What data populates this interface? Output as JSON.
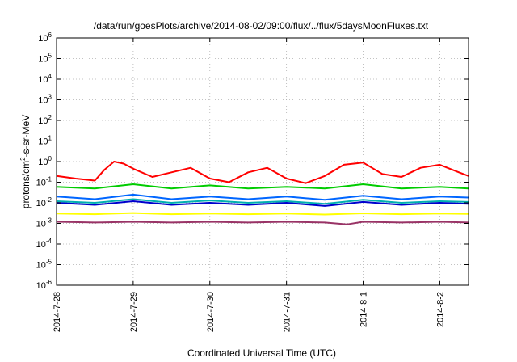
{
  "chart_data": {
    "type": "line",
    "title": "/data/run/goesPlots/archive/2014-08-02/09:00/flux/../flux/5daysMoonFluxes.txt",
    "xlabel": "Coordinated Universal Time (UTC)",
    "ylabel": {
      "pre": "protons/cm",
      "sup": "2",
      "post": "-s-sr-MeV"
    },
    "yscale": "log",
    "ylim": [
      1e-06,
      1000000.0
    ],
    "xlim": [
      "2014-07-28",
      "2014-08-02T09:00"
    ],
    "grid": true,
    "legend": "none",
    "x_ticks": [
      {
        "date": "2014-07-28",
        "label": "2014-7-28"
      },
      {
        "date": "2014-07-29",
        "label": "2014-7-29"
      },
      {
        "date": "2014-07-30",
        "label": "2014-7-30"
      },
      {
        "date": "2014-07-31",
        "label": "2014-7-31"
      },
      {
        "date": "2014-08-01",
        "label": "2014-8-1"
      },
      {
        "date": "2014-08-02",
        "label": "2014-8-2"
      }
    ],
    "y_ticks": [
      {
        "value": 1e-06,
        "base": "10",
        "exp": "-6"
      },
      {
        "value": 1e-05,
        "base": "10",
        "exp": "-5"
      },
      {
        "value": 0.0001,
        "base": "10",
        "exp": "-4"
      },
      {
        "value": 0.001,
        "base": "10",
        "exp": "-3"
      },
      {
        "value": 0.01,
        "base": "10",
        "exp": "-2"
      },
      {
        "value": 0.1,
        "base": "10",
        "exp": "-1"
      },
      {
        "value": 1.0,
        "base": "10",
        "exp": "0"
      },
      {
        "value": 10.0,
        "base": "10",
        "exp": "1"
      },
      {
        "value": 100.0,
        "base": "10",
        "exp": "2"
      },
      {
        "value": 1000.0,
        "base": "10",
        "exp": "3"
      },
      {
        "value": 10000.0,
        "base": "10",
        "exp": "4"
      },
      {
        "value": 100000.0,
        "base": "10",
        "exp": "5"
      },
      {
        "value": 1000000.0,
        "base": "10",
        "exp": "6"
      }
    ],
    "series": [
      {
        "color": "#ff0000",
        "x": [
          "2014-07-28T00:00",
          "2014-07-28T06:00",
          "2014-07-28T12:00",
          "2014-07-28T15:00",
          "2014-07-28T18:00",
          "2014-07-28T21:00",
          "2014-07-29T00:00",
          "2014-07-29T06:00",
          "2014-07-29T12:00",
          "2014-07-29T18:00",
          "2014-07-30T00:00",
          "2014-07-30T06:00",
          "2014-07-30T12:00",
          "2014-07-30T18:00",
          "2014-07-31T00:00",
          "2014-07-31T06:00",
          "2014-07-31T12:00",
          "2014-07-31T18:00",
          "2014-08-01T00:00",
          "2014-08-01T06:00",
          "2014-08-01T12:00",
          "2014-08-01T18:00",
          "2014-08-02T00:00",
          "2014-08-02T06:00",
          "2014-08-02T09:00"
        ],
        "y": [
          0.2,
          0.15,
          0.12,
          0.4,
          1.0,
          0.8,
          0.45,
          0.18,
          0.3,
          0.5,
          0.15,
          0.1,
          0.3,
          0.5,
          0.15,
          0.09,
          0.2,
          0.7,
          0.9,
          0.25,
          0.18,
          0.5,
          0.7,
          0.3,
          0.2
        ]
      },
      {
        "color": "#00cc00",
        "x": [
          "2014-07-28T00:00",
          "2014-07-28T12:00",
          "2014-07-29T00:00",
          "2014-07-29T12:00",
          "2014-07-30T00:00",
          "2014-07-30T12:00",
          "2014-07-31T00:00",
          "2014-07-31T12:00",
          "2014-08-01T00:00",
          "2014-08-01T12:00",
          "2014-08-02T00:00",
          "2014-08-02T09:00"
        ],
        "y": [
          0.06,
          0.05,
          0.08,
          0.05,
          0.07,
          0.05,
          0.06,
          0.05,
          0.08,
          0.05,
          0.06,
          0.05
        ]
      },
      {
        "color": "#00b0b0",
        "x": [
          "2014-07-28T00:00",
          "2014-07-28T12:00",
          "2014-07-29T00:00",
          "2014-07-29T12:00",
          "2014-07-30T00:00",
          "2014-07-30T12:00",
          "2014-07-31T00:00",
          "2014-07-31T12:00",
          "2014-08-01T00:00",
          "2014-08-01T12:00",
          "2014-08-02T00:00",
          "2014-08-02T09:00"
        ],
        "y": [
          0.012,
          0.01,
          0.015,
          0.01,
          0.013,
          0.01,
          0.012,
          0.009,
          0.014,
          0.01,
          0.012,
          0.011
        ]
      },
      {
        "color": "#0066ff",
        "x": [
          "2014-07-28T00:00",
          "2014-07-28T12:00",
          "2014-07-29T00:00",
          "2014-07-29T12:00",
          "2014-07-30T00:00",
          "2014-07-30T12:00",
          "2014-07-31T00:00",
          "2014-07-31T12:00",
          "2014-08-01T00:00",
          "2014-08-01T12:00",
          "2014-08-02T00:00",
          "2014-08-02T09:00"
        ],
        "y": [
          0.02,
          0.015,
          0.025,
          0.015,
          0.02,
          0.015,
          0.02,
          0.014,
          0.022,
          0.015,
          0.02,
          0.018
        ]
      },
      {
        "color": "#0000cc",
        "x": [
          "2014-07-28T00:00",
          "2014-07-28T12:00",
          "2014-07-29T00:00",
          "2014-07-29T12:00",
          "2014-07-30T00:00",
          "2014-07-30T12:00",
          "2014-07-31T00:00",
          "2014-07-31T12:00",
          "2014-08-01T00:00",
          "2014-08-01T12:00",
          "2014-08-02T00:00",
          "2014-08-02T09:00"
        ],
        "y": [
          0.01,
          0.008,
          0.012,
          0.008,
          0.01,
          0.008,
          0.01,
          0.007,
          0.011,
          0.008,
          0.01,
          0.009
        ]
      },
      {
        "color": "#ffff00",
        "x": [
          "2014-07-28T00:00",
          "2014-07-28T12:00",
          "2014-07-29T00:00",
          "2014-07-29T12:00",
          "2014-07-30T00:00",
          "2014-07-30T12:00",
          "2014-07-31T00:00",
          "2014-07-31T12:00",
          "2014-08-01T00:00",
          "2014-08-01T12:00",
          "2014-08-02T00:00",
          "2014-08-02T09:00"
        ],
        "y": [
          0.003,
          0.0028,
          0.0032,
          0.0028,
          0.003,
          0.0028,
          0.003,
          0.0027,
          0.0031,
          0.0028,
          0.003,
          0.0029
        ]
      },
      {
        "color": "#993366",
        "x": [
          "2014-07-28T00:00",
          "2014-07-28T12:00",
          "2014-07-29T00:00",
          "2014-07-29T12:00",
          "2014-07-30T00:00",
          "2014-07-30T12:00",
          "2014-07-31T00:00",
          "2014-07-31T12:00",
          "2014-07-31T19:00",
          "2014-08-01T00:00",
          "2014-08-01T12:00",
          "2014-08-02T00:00",
          "2014-08-02T09:00"
        ],
        "y": [
          0.0012,
          0.0011,
          0.0012,
          0.0011,
          0.0012,
          0.0011,
          0.0012,
          0.0011,
          0.0009,
          0.0012,
          0.0011,
          0.0012,
          0.0011
        ]
      }
    ]
  }
}
